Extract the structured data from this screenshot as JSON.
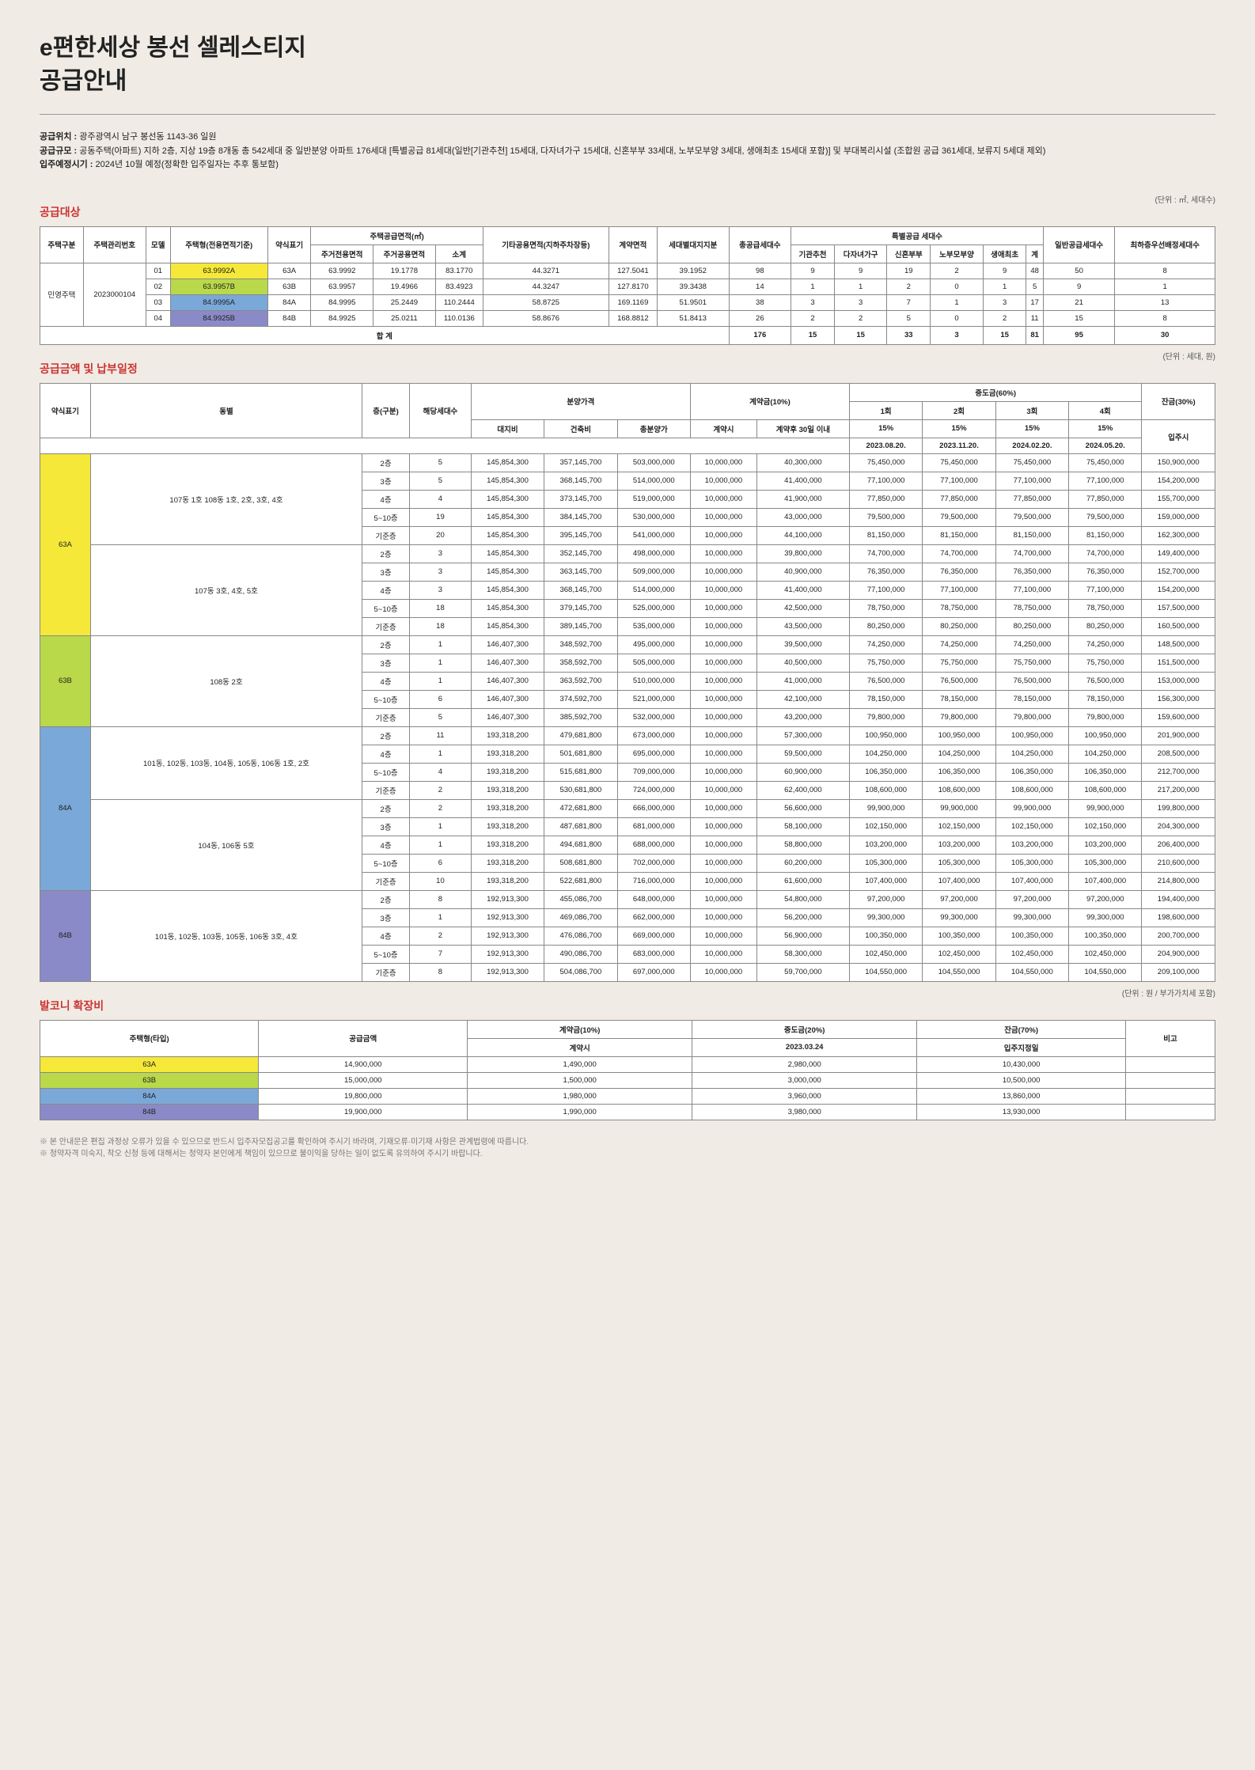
{
  "title_line1": "e편한세상 봉선 셀레스티지",
  "title_line2": "공급안내",
  "info": {
    "loc_label": "공급위치 :",
    "loc": "광주광역시 남구 봉선동 1143-36 일원",
    "scale_label": "공급규모 :",
    "scale": "공동주택(아파트) 지하 2층, 지상 19층 8개동 총 542세대 중 일반분양 아파트 176세대 [특별공급 81세대(일반[기관추천] 15세대, 다자녀가구 15세대, 신혼부부 33세대, 노부모부양 3세대, 생애최초 15세대 포함)] 및 부대복리시설 (조합원 공급 361세대, 보류지 5세대 제외)",
    "movein_label": "입주예정시기 :",
    "movein": "2024년 10월 예정(정확한 입주일자는 추후 통보함)"
  },
  "sec1": {
    "title": "공급대상",
    "unit": "(단위 : ㎡, 세대수)"
  },
  "t1_headers": {
    "h1": "주택구분",
    "h2": "주택관리번호",
    "h3": "모델",
    "h4": "주택형(전용면적기준)",
    "h5": "약식표기",
    "h6": "주택공급면적(㎡)",
    "h6a": "주거전용면적",
    "h6b": "주거공용면적",
    "h6c": "소계",
    "h7": "기타공용면적(지하주차장등)",
    "h8": "계약면적",
    "h9": "세대별대지지분",
    "h10": "총공급세대수",
    "h11": "특별공급 세대수",
    "h11a": "기관추천",
    "h11b": "다자녀가구",
    "h11c": "신혼부부",
    "h11d": "노부모부양",
    "h11e": "생애최초",
    "h11f": "계",
    "h12": "일반공급세대수",
    "h13": "최하층우선배정세대수"
  },
  "t1": {
    "type": "민영주택",
    "mgmt": "2023000104",
    "total": "합 계",
    "rows": [
      {
        "m": "01",
        "ht": "63.9992A",
        "cls": "type-63a",
        "ab": "63A",
        "a": "63.9992",
        "b": "19.1778",
        "c": "83.1770",
        "d": "44.3271",
        "e": "127.5041",
        "f": "39.1952",
        "g": "98",
        "h": "9",
        "i": "9",
        "j": "19",
        "k": "2",
        "l": "9",
        "n": "48",
        "o": "50",
        "p": "8"
      },
      {
        "m": "02",
        "ht": "63.9957B",
        "cls": "type-63b",
        "ab": "63B",
        "a": "63.9957",
        "b": "19.4966",
        "c": "83.4923",
        "d": "44.3247",
        "e": "127.8170",
        "f": "39.3438",
        "g": "14",
        "h": "1",
        "i": "1",
        "j": "2",
        "k": "0",
        "l": "1",
        "n": "5",
        "o": "9",
        "p": "1"
      },
      {
        "m": "03",
        "ht": "84.9995A",
        "cls": "type-84a",
        "ab": "84A",
        "a": "84.9995",
        "b": "25.2449",
        "c": "110.2444",
        "d": "58.8725",
        "e": "169.1169",
        "f": "51.9501",
        "g": "38",
        "h": "3",
        "i": "3",
        "j": "7",
        "k": "1",
        "l": "3",
        "n": "17",
        "o": "21",
        "p": "13"
      },
      {
        "m": "04",
        "ht": "84.9925B",
        "cls": "type-84b",
        "ab": "84B",
        "a": "84.9925",
        "b": "25.0211",
        "c": "110.0136",
        "d": "58.8676",
        "e": "168.8812",
        "f": "51.8413",
        "g": "26",
        "h": "2",
        "i": "2",
        "j": "5",
        "k": "0",
        "l": "2",
        "n": "11",
        "o": "15",
        "p": "8"
      }
    ],
    "totals": {
      "g": "176",
      "h": "15",
      "i": "15",
      "j": "33",
      "k": "3",
      "l": "15",
      "n": "81",
      "o": "95",
      "p": "30"
    }
  },
  "sec2": {
    "title": "공급금액 및 납부일정",
    "unit": "(단위 : 세대, 원)"
  },
  "t2_headers": {
    "h1": "약식표기",
    "h2": "동별",
    "h3": "층(구분)",
    "h4": "해당세대수",
    "h5": "분양가격",
    "h5a": "대지비",
    "h5b": "건축비",
    "h5c": "총분양가",
    "h6": "계약금(10%)",
    "h6a": "계약시",
    "h6b": "계약후 30일 이내",
    "h7": "중도금(60%)",
    "h7_1": "1회",
    "h7_2": "2회",
    "h7_3": "3회",
    "h7_4": "4회",
    "h7p": "15%",
    "h7d1": "2023.08.20.",
    "h7d2": "2023.11.20.",
    "h7d3": "2024.02.20.",
    "h7d4": "2024.05.20.",
    "h8": "잔금(30%)",
    "h8a": "입주시"
  },
  "t2_groups": [
    {
      "ab": "63A",
      "cls": "type-63a",
      "blocks": [
        {
          "dong": "107동 1호 108동 1호, 2호, 3호, 4호",
          "rows": [
            {
              "fl": "2층",
              "n": "5",
              "a": "145,854,300",
              "b": "357,145,700",
              "c": "503,000,000",
              "d": "10,000,000",
              "e": "40,300,000",
              "f": "75,450,000",
              "g": "75,450,000",
              "h": "75,450,000",
              "i": "75,450,000",
              "j": "150,900,000"
            },
            {
              "fl": "3층",
              "n": "5",
              "a": "145,854,300",
              "b": "368,145,700",
              "c": "514,000,000",
              "d": "10,000,000",
              "e": "41,400,000",
              "f": "77,100,000",
              "g": "77,100,000",
              "h": "77,100,000",
              "i": "77,100,000",
              "j": "154,200,000"
            },
            {
              "fl": "4층",
              "n": "4",
              "a": "145,854,300",
              "b": "373,145,700",
              "c": "519,000,000",
              "d": "10,000,000",
              "e": "41,900,000",
              "f": "77,850,000",
              "g": "77,850,000",
              "h": "77,850,000",
              "i": "77,850,000",
              "j": "155,700,000"
            },
            {
              "fl": "5~10층",
              "n": "19",
              "a": "145,854,300",
              "b": "384,145,700",
              "c": "530,000,000",
              "d": "10,000,000",
              "e": "43,000,000",
              "f": "79,500,000",
              "g": "79,500,000",
              "h": "79,500,000",
              "i": "79,500,000",
              "j": "159,000,000"
            },
            {
              "fl": "기준층",
              "n": "20",
              "a": "145,854,300",
              "b": "395,145,700",
              "c": "541,000,000",
              "d": "10,000,000",
              "e": "44,100,000",
              "f": "81,150,000",
              "g": "81,150,000",
              "h": "81,150,000",
              "i": "81,150,000",
              "j": "162,300,000"
            }
          ]
        },
        {
          "dong": "107동 3호, 4호, 5호",
          "rows": [
            {
              "fl": "2층",
              "n": "3",
              "a": "145,854,300",
              "b": "352,145,700",
              "c": "498,000,000",
              "d": "10,000,000",
              "e": "39,800,000",
              "f": "74,700,000",
              "g": "74,700,000",
              "h": "74,700,000",
              "i": "74,700,000",
              "j": "149,400,000"
            },
            {
              "fl": "3층",
              "n": "3",
              "a": "145,854,300",
              "b": "363,145,700",
              "c": "509,000,000",
              "d": "10,000,000",
              "e": "40,900,000",
              "f": "76,350,000",
              "g": "76,350,000",
              "h": "76,350,000",
              "i": "76,350,000",
              "j": "152,700,000"
            },
            {
              "fl": "4층",
              "n": "3",
              "a": "145,854,300",
              "b": "368,145,700",
              "c": "514,000,000",
              "d": "10,000,000",
              "e": "41,400,000",
              "f": "77,100,000",
              "g": "77,100,000",
              "h": "77,100,000",
              "i": "77,100,000",
              "j": "154,200,000"
            },
            {
              "fl": "5~10층",
              "n": "18",
              "a": "145,854,300",
              "b": "379,145,700",
              "c": "525,000,000",
              "d": "10,000,000",
              "e": "42,500,000",
              "f": "78,750,000",
              "g": "78,750,000",
              "h": "78,750,000",
              "i": "78,750,000",
              "j": "157,500,000"
            },
            {
              "fl": "기준층",
              "n": "18",
              "a": "145,854,300",
              "b": "389,145,700",
              "c": "535,000,000",
              "d": "10,000,000",
              "e": "43,500,000",
              "f": "80,250,000",
              "g": "80,250,000",
              "h": "80,250,000",
              "i": "80,250,000",
              "j": "160,500,000"
            }
          ]
        }
      ]
    },
    {
      "ab": "63B",
      "cls": "type-63b",
      "blocks": [
        {
          "dong": "108동 2호",
          "rows": [
            {
              "fl": "2층",
              "n": "1",
              "a": "146,407,300",
              "b": "348,592,700",
              "c": "495,000,000",
              "d": "10,000,000",
              "e": "39,500,000",
              "f": "74,250,000",
              "g": "74,250,000",
              "h": "74,250,000",
              "i": "74,250,000",
              "j": "148,500,000"
            },
            {
              "fl": "3층",
              "n": "1",
              "a": "146,407,300",
              "b": "358,592,700",
              "c": "505,000,000",
              "d": "10,000,000",
              "e": "40,500,000",
              "f": "75,750,000",
              "g": "75,750,000",
              "h": "75,750,000",
              "i": "75,750,000",
              "j": "151,500,000"
            },
            {
              "fl": "4층",
              "n": "1",
              "a": "146,407,300",
              "b": "363,592,700",
              "c": "510,000,000",
              "d": "10,000,000",
              "e": "41,000,000",
              "f": "76,500,000",
              "g": "76,500,000",
              "h": "76,500,000",
              "i": "76,500,000",
              "j": "153,000,000"
            },
            {
              "fl": "5~10층",
              "n": "6",
              "a": "146,407,300",
              "b": "374,592,700",
              "c": "521,000,000",
              "d": "10,000,000",
              "e": "42,100,000",
              "f": "78,150,000",
              "g": "78,150,000",
              "h": "78,150,000",
              "i": "78,150,000",
              "j": "156,300,000"
            },
            {
              "fl": "기준층",
              "n": "5",
              "a": "146,407,300",
              "b": "385,592,700",
              "c": "532,000,000",
              "d": "10,000,000",
              "e": "43,200,000",
              "f": "79,800,000",
              "g": "79,800,000",
              "h": "79,800,000",
              "i": "79,800,000",
              "j": "159,600,000"
            }
          ]
        }
      ]
    },
    {
      "ab": "84A",
      "cls": "type-84a",
      "blocks": [
        {
          "dong": "101동, 102동, 103동, 104동, 105동, 106동 1호, 2호",
          "rows": [
            {
              "fl": "2층",
              "n": "11",
              "a": "193,318,200",
              "b": "479,681,800",
              "c": "673,000,000",
              "d": "10,000,000",
              "e": "57,300,000",
              "f": "100,950,000",
              "g": "100,950,000",
              "h": "100,950,000",
              "i": "100,950,000",
              "j": "201,900,000"
            },
            {
              "fl": "4층",
              "n": "1",
              "a": "193,318,200",
              "b": "501,681,800",
              "c": "695,000,000",
              "d": "10,000,000",
              "e": "59,500,000",
              "f": "104,250,000",
              "g": "104,250,000",
              "h": "104,250,000",
              "i": "104,250,000",
              "j": "208,500,000"
            },
            {
              "fl": "5~10층",
              "n": "4",
              "a": "193,318,200",
              "b": "515,681,800",
              "c": "709,000,000",
              "d": "10,000,000",
              "e": "60,900,000",
              "f": "106,350,000",
              "g": "106,350,000",
              "h": "106,350,000",
              "i": "106,350,000",
              "j": "212,700,000"
            },
            {
              "fl": "기준층",
              "n": "2",
              "a": "193,318,200",
              "b": "530,681,800",
              "c": "724,000,000",
              "d": "10,000,000",
              "e": "62,400,000",
              "f": "108,600,000",
              "g": "108,600,000",
              "h": "108,600,000",
              "i": "108,600,000",
              "j": "217,200,000"
            }
          ]
        },
        {
          "dong": "104동, 106동 5호",
          "rows": [
            {
              "fl": "2층",
              "n": "2",
              "a": "193,318,200",
              "b": "472,681,800",
              "c": "666,000,000",
              "d": "10,000,000",
              "e": "56,600,000",
              "f": "99,900,000",
              "g": "99,900,000",
              "h": "99,900,000",
              "i": "99,900,000",
              "j": "199,800,000"
            },
            {
              "fl": "3층",
              "n": "1",
              "a": "193,318,200",
              "b": "487,681,800",
              "c": "681,000,000",
              "d": "10,000,000",
              "e": "58,100,000",
              "f": "102,150,000",
              "g": "102,150,000",
              "h": "102,150,000",
              "i": "102,150,000",
              "j": "204,300,000"
            },
            {
              "fl": "4층",
              "n": "1",
              "a": "193,318,200",
              "b": "494,681,800",
              "c": "688,000,000",
              "d": "10,000,000",
              "e": "58,800,000",
              "f": "103,200,000",
              "g": "103,200,000",
              "h": "103,200,000",
              "i": "103,200,000",
              "j": "206,400,000"
            },
            {
              "fl": "5~10층",
              "n": "6",
              "a": "193,318,200",
              "b": "508,681,800",
              "c": "702,000,000",
              "d": "10,000,000",
              "e": "60,200,000",
              "f": "105,300,000",
              "g": "105,300,000",
              "h": "105,300,000",
              "i": "105,300,000",
              "j": "210,600,000"
            },
            {
              "fl": "기준층",
              "n": "10",
              "a": "193,318,200",
              "b": "522,681,800",
              "c": "716,000,000",
              "d": "10,000,000",
              "e": "61,600,000",
              "f": "107,400,000",
              "g": "107,400,000",
              "h": "107,400,000",
              "i": "107,400,000",
              "j": "214,800,000"
            }
          ]
        }
      ]
    },
    {
      "ab": "84B",
      "cls": "type-84b",
      "blocks": [
        {
          "dong": "101동, 102동, 103동, 105동, 106동 3호, 4호",
          "rows": [
            {
              "fl": "2층",
              "n": "8",
              "a": "192,913,300",
              "b": "455,086,700",
              "c": "648,000,000",
              "d": "10,000,000",
              "e": "54,800,000",
              "f": "97,200,000",
              "g": "97,200,000",
              "h": "97,200,000",
              "i": "97,200,000",
              "j": "194,400,000"
            },
            {
              "fl": "3층",
              "n": "1",
              "a": "192,913,300",
              "b": "469,086,700",
              "c": "662,000,000",
              "d": "10,000,000",
              "e": "56,200,000",
              "f": "99,300,000",
              "g": "99,300,000",
              "h": "99,300,000",
              "i": "99,300,000",
              "j": "198,600,000"
            },
            {
              "fl": "4층",
              "n": "2",
              "a": "192,913,300",
              "b": "476,086,700",
              "c": "669,000,000",
              "d": "10,000,000",
              "e": "56,900,000",
              "f": "100,350,000",
              "g": "100,350,000",
              "h": "100,350,000",
              "i": "100,350,000",
              "j": "200,700,000"
            },
            {
              "fl": "5~10층",
              "n": "7",
              "a": "192,913,300",
              "b": "490,086,700",
              "c": "683,000,000",
              "d": "10,000,000",
              "e": "58,300,000",
              "f": "102,450,000",
              "g": "102,450,000",
              "h": "102,450,000",
              "i": "102,450,000",
              "j": "204,900,000"
            },
            {
              "fl": "기준층",
              "n": "8",
              "a": "192,913,300",
              "b": "504,086,700",
              "c": "697,000,000",
              "d": "10,000,000",
              "e": "59,700,000",
              "f": "104,550,000",
              "g": "104,550,000",
              "h": "104,550,000",
              "i": "104,550,000",
              "j": "209,100,000"
            }
          ]
        }
      ]
    }
  ],
  "sec3": {
    "title": "발코니 확장비",
    "unit": "(단위 : 원 / 부가가치세 포함)"
  },
  "t3_headers": {
    "h1": "주택형(타입)",
    "h2": "공급금액",
    "h3": "계약금(10%)",
    "h3a": "계약시",
    "h4": "중도금(20%)",
    "h4a": "2023.03.24",
    "h5": "잔금(70%)",
    "h5a": "입주지정일",
    "h6": "비고"
  },
  "t3_rows": [
    {
      "t": "63A",
      "cls": "type-63a",
      "a": "14,900,000",
      "b": "1,490,000",
      "c": "2,980,000",
      "d": "10,430,000"
    },
    {
      "t": "63B",
      "cls": "type-63b",
      "a": "15,000,000",
      "b": "1,500,000",
      "c": "3,000,000",
      "d": "10,500,000"
    },
    {
      "t": "84A",
      "cls": "type-84a",
      "a": "19,800,000",
      "b": "1,980,000",
      "c": "3,960,000",
      "d": "13,860,000"
    },
    {
      "t": "84B",
      "cls": "type-84b",
      "a": "19,900,000",
      "b": "1,990,000",
      "c": "3,980,000",
      "d": "13,930,000"
    }
  ],
  "foot1": "※ 본 안내문은 편집 과정상 오류가 있을 수 있으므로 반드시 입주자모집공고를 확인하여 주시기 바라며, 기재오류·미기재 사항은 관계법령에 따릅니다.",
  "foot2": "※ 청약자격 미숙지, 착오 신청 등에 대해서는 청약자 본인에게 책임이 있으므로 불이익을 당하는 일이 없도록 유의하여 주시기 바랍니다."
}
